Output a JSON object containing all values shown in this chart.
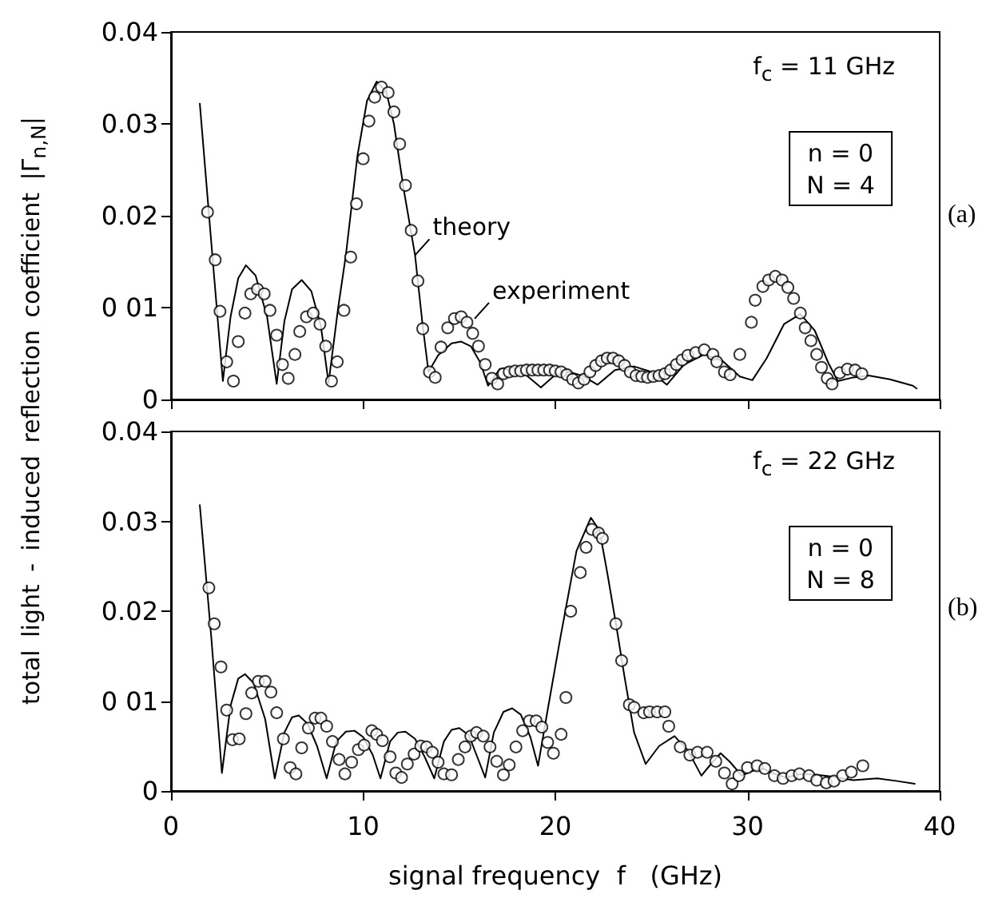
{
  "chart_data": [
    {
      "type": "line",
      "ylabel": "total light - induced reflection coefficient |Γ$_{n,N}$|",
      "xlim": [
        0,
        40
      ],
      "xticks": [
        0,
        10,
        20,
        30,
        40
      ],
      "ylim": [
        0,
        0.04
      ],
      "yticks": [
        0,
        {
          "value": 0.01,
          "label": "0 01"
        },
        0.02,
        0.03,
        0.04
      ],
      "tick_labels": "y",
      "grid": false,
      "series": [
        {
          "color": "#000000",
          "marker": "none",
          "line_style": "solid",
          "x": [
            1.5,
            2.1,
            2.7,
            3.1,
            3.5,
            3.9,
            4.4,
            5.0,
            5.5,
            5.9,
            6.3,
            6.8,
            7.3,
            7.8,
            8.2,
            8.7,
            9.1,
            9.7,
            10.2,
            10.7,
            11.2,
            11.6,
            12.1,
            12.7,
            13.1,
            13.4,
            13.9,
            14.6,
            15.1,
            15.6,
            16.1,
            16.5,
            17.1,
            17.75,
            18.4,
            19.25,
            20.0,
            20.7,
            21.4,
            22.2,
            23.1,
            24.1,
            25.0,
            25.8,
            26.7,
            27.75,
            28.7,
            29.6,
            30.25,
            31.0,
            31.9,
            32.75,
            33.5,
            34.2,
            34.7,
            35.5,
            36.3,
            37.4,
            38.6,
            38.8
          ],
          "values": [
            0.0322,
            0.017,
            0.002,
            0.009,
            0.0132,
            0.0146,
            0.0135,
            0.009,
            0.0017,
            0.0085,
            0.012,
            0.013,
            0.0118,
            0.008,
            0.0018,
            0.01,
            0.0157,
            0.0265,
            0.0325,
            0.0346,
            0.0335,
            0.03,
            0.023,
            0.0157,
            0.008,
            0.003,
            0.0048,
            0.0061,
            0.0063,
            0.0058,
            0.004,
            0.0015,
            0.0033,
            0.0035,
            0.0028,
            0.0013,
            0.0027,
            0.003,
            0.0026,
            0.0016,
            0.0032,
            0.0036,
            0.003,
            0.0016,
            0.0038,
            0.0049,
            0.0042,
            0.0025,
            0.0021,
            0.0045,
            0.0082,
            0.0093,
            0.0075,
            0.004,
            0.002,
            0.0024,
            0.0026,
            0.0022,
            0.0015,
            0.0012
          ]
        },
        {
          "type": "scatter",
          "color": "#000000",
          "marker": "circle",
          "x": [
            1.9,
            2.3,
            2.55,
            2.9,
            3.25,
            3.5,
            3.85,
            4.15,
            4.5,
            4.85,
            5.15,
            5.5,
            5.8,
            6.1,
            6.45,
            6.7,
            7.05,
            7.4,
            7.75,
            8.05,
            8.35,
            8.65,
            9.0,
            9.35,
            9.65,
            10.0,
            10.3,
            10.6,
            10.95,
            11.3,
            11.6,
            11.9,
            12.2,
            12.5,
            12.85,
            13.1,
            13.45,
            13.75,
            14.05,
            14.4,
            14.75,
            15.1,
            15.4,
            15.7,
            16.0,
            16.35,
            16.7,
            17.0,
            17.3,
            17.6,
            17.9,
            18.2,
            18.5,
            18.8,
            19.1,
            19.4,
            19.7,
            20.0,
            20.3,
            20.6,
            20.9,
            21.2,
            21.5,
            21.8,
            22.1,
            22.4,
            22.7,
            23.0,
            23.3,
            23.6,
            23.9,
            24.2,
            24.5,
            24.8,
            25.1,
            25.4,
            25.7,
            26.0,
            26.3,
            26.6,
            26.9,
            27.3,
            27.75,
            28.2,
            28.4,
            28.8,
            29.1,
            29.6,
            30.2,
            30.4,
            30.8,
            31.1,
            31.45,
            31.8,
            32.1,
            32.4,
            32.75,
            33.0,
            33.3,
            33.6,
            33.85,
            34.15,
            34.4,
            34.8,
            35.2,
            35.6,
            35.95
          ],
          "values": [
            0.0204,
            0.0152,
            0.0096,
            0.0041,
            0.002,
            0.0063,
            0.0094,
            0.0115,
            0.012,
            0.0115,
            0.0097,
            0.007,
            0.0038,
            0.0023,
            0.0049,
            0.0074,
            0.009,
            0.0094,
            0.0082,
            0.0058,
            0.002,
            0.0041,
            0.0097,
            0.0155,
            0.0213,
            0.0262,
            0.0303,
            0.0329,
            0.034,
            0.0334,
            0.0313,
            0.0278,
            0.0233,
            0.0184,
            0.0129,
            0.0077,
            0.003,
            0.0024,
            0.0057,
            0.0078,
            0.0088,
            0.009,
            0.0084,
            0.0072,
            0.0058,
            0.0038,
            0.0023,
            0.0017,
            0.0028,
            0.003,
            0.0031,
            0.0031,
            0.0032,
            0.0032,
            0.0032,
            0.0032,
            0.0032,
            0.0031,
            0.003,
            0.0027,
            0.0022,
            0.0018,
            0.0022,
            0.003,
            0.0037,
            0.0042,
            0.0045,
            0.0045,
            0.0042,
            0.0037,
            0.003,
            0.0026,
            0.0025,
            0.0024,
            0.0025,
            0.0026,
            0.0028,
            0.0032,
            0.0038,
            0.0043,
            0.0048,
            0.0051,
            0.0054,
            0.0049,
            0.0041,
            0.003,
            0.0027,
            0.0049,
            0.0084,
            0.0108,
            0.0123,
            0.013,
            0.0134,
            0.013,
            0.0122,
            0.011,
            0.0094,
            0.0078,
            0.0064,
            0.0049,
            0.0035,
            0.0023,
            0.0017,
            0.0029,
            0.0033,
            0.0032,
            0.0028
          ]
        }
      ],
      "annotations": [
        "f$_{c}$ = 11 GHz",
        "n = 0\nN = 4",
        "(a)",
        {
          "text": "theory",
          "x": 12.7,
          "y": 0.0157
        },
        {
          "text": "experiment",
          "x": 15.8,
          "y": 0.0088
        }
      ]
    },
    {
      "type": "line",
      "xlabel": "signal frequency  f   (GHz)",
      "xlim": [
        0,
        40
      ],
      "xticks": [
        0,
        10,
        20,
        30,
        40
      ],
      "ylim": [
        0,
        0.04
      ],
      "yticks": [
        0,
        {
          "value": 0.01,
          "label": "0 01"
        },
        0.02,
        0.03,
        0.04
      ],
      "grid": false,
      "series": [
        {
          "color": "#000000",
          "marker": "none",
          "line_style": "solid",
          "x": [
            1.5,
            2.1,
            2.65,
            3.1,
            3.5,
            3.85,
            4.3,
            4.9,
            5.4,
            5.9,
            6.3,
            6.65,
            7.1,
            7.6,
            8.1,
            8.6,
            9.1,
            9.55,
            10.0,
            10.5,
            10.9,
            11.4,
            11.8,
            12.2,
            12.7,
            13.2,
            13.7,
            14.2,
            14.6,
            15.0,
            15.5,
            15.9,
            16.35,
            16.8,
            17.3,
            17.75,
            18.2,
            18.7,
            19.1,
            19.6,
            20.25,
            21.1,
            21.85,
            22.3,
            22.7,
            23.2,
            23.6,
            24.1,
            24.7,
            25.4,
            26.2,
            26.9,
            27.6,
            28.1,
            28.6,
            29.1,
            29.7,
            30.2,
            30.8,
            31.4,
            32.0,
            32.8,
            33.6,
            34.4,
            35.5,
            36.75,
            37.8,
            38.7
          ],
          "values": [
            0.0318,
            0.017,
            0.002,
            0.0095,
            0.0125,
            0.013,
            0.012,
            0.008,
            0.0014,
            0.0065,
            0.0082,
            0.0084,
            0.0075,
            0.005,
            0.0014,
            0.0055,
            0.0066,
            0.0067,
            0.006,
            0.004,
            0.0014,
            0.0055,
            0.0065,
            0.0066,
            0.0058,
            0.0038,
            0.0014,
            0.0055,
            0.0068,
            0.007,
            0.0062,
            0.004,
            0.0015,
            0.0065,
            0.0088,
            0.0092,
            0.0085,
            0.006,
            0.0028,
            0.009,
            0.0169,
            0.0267,
            0.0304,
            0.029,
            0.0243,
            0.018,
            0.0127,
            0.0065,
            0.003,
            0.005,
            0.0061,
            0.0045,
            0.0017,
            0.003,
            0.0042,
            0.0032,
            0.0017,
            0.0022,
            0.0025,
            0.0019,
            0.0015,
            0.0019,
            0.0018,
            0.0016,
            0.0012,
            0.0014,
            0.0011,
            0.0008
          ]
        },
        {
          "type": "scatter",
          "color": "#000000",
          "marker": "circle",
          "x": [
            1.97,
            2.25,
            2.6,
            2.9,
            3.2,
            3.55,
            3.9,
            4.2,
            4.55,
            4.9,
            5.2,
            5.5,
            5.85,
            6.2,
            6.5,
            6.8,
            7.15,
            7.5,
            7.8,
            8.1,
            8.4,
            8.75,
            9.05,
            9.4,
            9.75,
            10.05,
            10.45,
            10.7,
            11.0,
            11.4,
            11.7,
            12.0,
            12.3,
            12.65,
            13.0,
            13.3,
            13.6,
            13.9,
            14.2,
            14.6,
            14.95,
            15.3,
            15.6,
            15.9,
            16.25,
            16.6,
            16.95,
            17.3,
            17.6,
            17.95,
            18.3,
            18.65,
            19.0,
            19.3,
            19.6,
            19.9,
            20.3,
            20.55,
            20.8,
            21.3,
            21.6,
            21.9,
            22.25,
            22.45,
            23.15,
            23.45,
            23.85,
            24.1,
            24.6,
            24.9,
            25.3,
            25.7,
            25.9,
            26.5,
            27.0,
            27.4,
            27.9,
            28.35,
            28.8,
            29.2,
            29.55,
            30.0,
            30.5,
            30.9,
            31.4,
            31.85,
            32.3,
            32.7,
            33.2,
            33.6,
            34.1,
            34.5,
            34.95,
            35.4,
            36.0
          ],
          "values": [
            0.0226,
            0.0186,
            0.0138,
            0.009,
            0.0057,
            0.0058,
            0.0086,
            0.0109,
            0.0122,
            0.0122,
            0.011,
            0.0087,
            0.0058,
            0.0026,
            0.0019,
            0.0048,
            0.007,
            0.0081,
            0.0081,
            0.0072,
            0.0055,
            0.0035,
            0.0019,
            0.0032,
            0.0046,
            0.0051,
            0.0067,
            0.0063,
            0.0056,
            0.0038,
            0.002,
            0.0015,
            0.003,
            0.0041,
            0.005,
            0.0049,
            0.0043,
            0.0032,
            0.0019,
            0.0018,
            0.0035,
            0.0049,
            0.0061,
            0.0065,
            0.0061,
            0.0049,
            0.0033,
            0.0018,
            0.0029,
            0.0049,
            0.0067,
            0.0078,
            0.0078,
            0.0071,
            0.0054,
            0.0042,
            0.0063,
            0.0104,
            0.02,
            0.0243,
            0.0271,
            0.0291,
            0.0287,
            0.0281,
            0.0186,
            0.0145,
            0.0096,
            0.0093,
            0.0087,
            0.0088,
            0.0088,
            0.0088,
            0.0072,
            0.0049,
            0.004,
            0.0043,
            0.0043,
            0.0033,
            0.002,
            0.0008,
            0.0017,
            0.0026,
            0.0028,
            0.0025,
            0.0017,
            0.0014,
            0.0017,
            0.0019,
            0.0017,
            0.0012,
            0.0009,
            0.0011,
            0.0017,
            0.0021,
            0.0028
          ]
        }
      ],
      "annotations": [
        "f$_{c}$ = 22 GHz",
        "n = 0\nN = 8",
        "(b)"
      ]
    }
  ]
}
